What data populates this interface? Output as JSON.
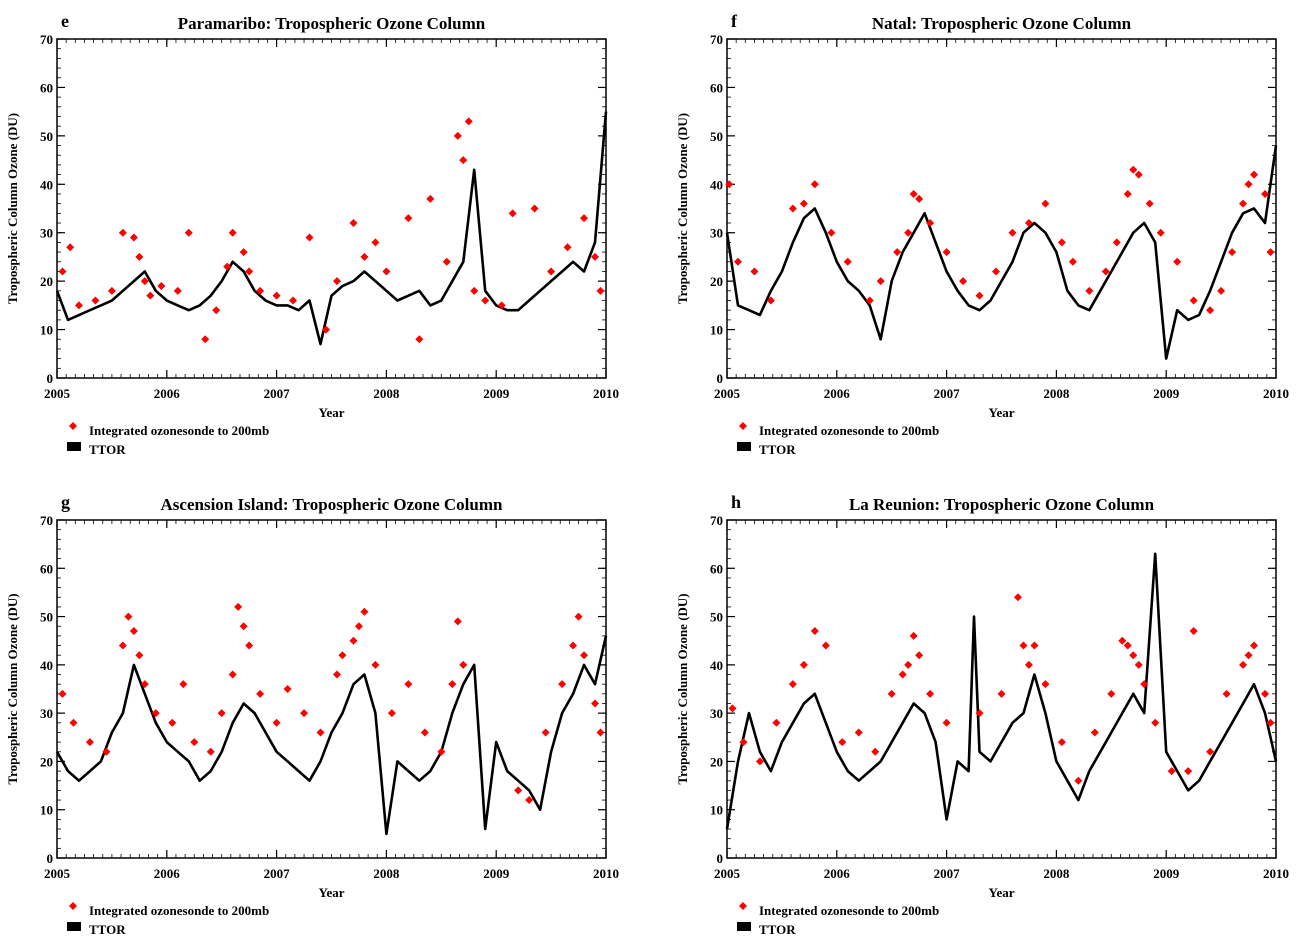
{
  "legend": {
    "sonde_label": "Integrated ozonesonde to 200mb",
    "ttor_label": "TTOR"
  },
  "colors": {
    "sonde": "#ff0000",
    "ttor": "#000000"
  },
  "chart_data": [
    {
      "type": "line",
      "panel": "e",
      "title": "Paramaribo: Tropospheric Ozone Column",
      "xlabel": "Year",
      "ylabel": "Tropospheric Column Ozone (DU)",
      "xlim": [
        2005,
        2010
      ],
      "ylim": [
        0,
        70
      ],
      "xticks": [
        "2005",
        "2006",
        "2007",
        "2008",
        "2009",
        "2010"
      ],
      "yticks": [
        "0",
        "10",
        "20",
        "30",
        "40",
        "50",
        "60",
        "70"
      ],
      "legend_position": "below-left",
      "series": [
        {
          "name": "TTOR",
          "kind": "line",
          "x": [
            2005.0,
            2005.1,
            2005.2,
            2005.3,
            2005.4,
            2005.5,
            2005.6,
            2005.7,
            2005.8,
            2005.9,
            2006.0,
            2006.1,
            2006.2,
            2006.3,
            2006.4,
            2006.5,
            2006.6,
            2006.7,
            2006.8,
            2006.9,
            2007.0,
            2007.1,
            2007.2,
            2007.3,
            2007.4,
            2007.5,
            2007.6,
            2007.7,
            2007.8,
            2007.9,
            2008.0,
            2008.1,
            2008.2,
            2008.3,
            2008.4,
            2008.5,
            2008.6,
            2008.7,
            2008.8,
            2008.9,
            2009.0,
            2009.1,
            2009.2,
            2009.3,
            2009.4,
            2009.5,
            2009.6,
            2009.7,
            2009.8,
            2009.9,
            2010.0
          ],
          "y": [
            18,
            12,
            13,
            14,
            15,
            16,
            18,
            20,
            22,
            18,
            16,
            15,
            14,
            15,
            17,
            20,
            24,
            22,
            18,
            16,
            15,
            15,
            14,
            16,
            7,
            17,
            19,
            20,
            22,
            20,
            18,
            16,
            17,
            18,
            15,
            16,
            20,
            24,
            43,
            18,
            15,
            14,
            14,
            16,
            18,
            20,
            22,
            24,
            22,
            28,
            55
          ]
        },
        {
          "name": "Integrated ozonesonde to 200mb",
          "kind": "scatter",
          "x": [
            2005.05,
            2005.12,
            2005.2,
            2005.35,
            2005.5,
            2005.6,
            2005.7,
            2005.75,
            2005.8,
            2005.85,
            2005.95,
            2006.1,
            2006.2,
            2006.35,
            2006.45,
            2006.55,
            2006.6,
            2006.7,
            2006.75,
            2006.85,
            2007.0,
            2007.15,
            2007.3,
            2007.45,
            2007.55,
            2007.7,
            2007.8,
            2007.9,
            2008.0,
            2008.2,
            2008.3,
            2008.4,
            2008.55,
            2008.65,
            2008.7,
            2008.75,
            2008.8,
            2008.9,
            2009.05,
            2009.15,
            2009.35,
            2009.5,
            2009.65,
            2009.8,
            2009.9,
            2009.95
          ],
          "y": [
            22,
            27,
            15,
            16,
            18,
            30,
            29,
            25,
            20,
            17,
            19,
            18,
            30,
            8,
            14,
            23,
            30,
            26,
            22,
            18,
            17,
            16,
            29,
            10,
            20,
            32,
            25,
            28,
            22,
            33,
            8,
            37,
            24,
            50,
            45,
            53,
            18,
            16,
            15,
            34,
            35,
            22,
            27,
            33,
            25,
            18
          ]
        }
      ]
    },
    {
      "type": "line",
      "panel": "f",
      "title": "Natal: Tropospheric Ozone Column",
      "xlabel": "Year",
      "ylabel": "Tropospheric Column Ozone (DU)",
      "xlim": [
        2005,
        2010
      ],
      "ylim": [
        0,
        70
      ],
      "xticks": [
        "2005",
        "2006",
        "2007",
        "2008",
        "2009",
        "2010"
      ],
      "yticks": [
        "0",
        "10",
        "20",
        "30",
        "40",
        "50",
        "60",
        "70"
      ],
      "legend_position": "below-left",
      "series": [
        {
          "name": "TTOR",
          "kind": "line",
          "x": [
            2005.0,
            2005.1,
            2005.2,
            2005.3,
            2005.4,
            2005.5,
            2005.6,
            2005.7,
            2005.8,
            2005.9,
            2006.0,
            2006.1,
            2006.2,
            2006.3,
            2006.4,
            2006.5,
            2006.6,
            2006.7,
            2006.8,
            2006.9,
            2007.0,
            2007.1,
            2007.2,
            2007.3,
            2007.4,
            2007.5,
            2007.6,
            2007.7,
            2007.8,
            2007.9,
            2008.0,
            2008.1,
            2008.2,
            2008.3,
            2008.4,
            2008.5,
            2008.6,
            2008.7,
            2008.8,
            2008.9,
            2009.0,
            2009.1,
            2009.2,
            2009.3,
            2009.4,
            2009.5,
            2009.6,
            2009.7,
            2009.8,
            2009.9,
            2010.0
          ],
          "y": [
            30,
            15,
            14,
            13,
            18,
            22,
            28,
            33,
            35,
            30,
            24,
            20,
            18,
            15,
            8,
            20,
            26,
            30,
            34,
            28,
            22,
            18,
            15,
            14,
            16,
            20,
            24,
            30,
            32,
            30,
            26,
            18,
            15,
            14,
            18,
            22,
            26,
            30,
            32,
            28,
            4,
            14,
            12,
            13,
            18,
            24,
            30,
            34,
            35,
            32,
            48
          ]
        },
        {
          "name": "Integrated ozonesonde to 200mb",
          "kind": "scatter",
          "x": [
            2005.02,
            2005.1,
            2005.25,
            2005.4,
            2005.6,
            2005.7,
            2005.8,
            2005.95,
            2006.1,
            2006.3,
            2006.4,
            2006.55,
            2006.65,
            2006.7,
            2006.75,
            2006.85,
            2007.0,
            2007.15,
            2007.3,
            2007.45,
            2007.6,
            2007.75,
            2007.9,
            2008.05,
            2008.15,
            2008.3,
            2008.45,
            2008.55,
            2008.65,
            2008.7,
            2008.75,
            2008.85,
            2008.95,
            2009.1,
            2009.25,
            2009.4,
            2009.5,
            2009.6,
            2009.7,
            2009.75,
            2009.8,
            2009.9,
            2009.95
          ],
          "y": [
            40,
            24,
            22,
            16,
            35,
            36,
            40,
            30,
            24,
            16,
            20,
            26,
            30,
            38,
            37,
            32,
            26,
            20,
            17,
            22,
            30,
            32,
            36,
            28,
            24,
            18,
            22,
            28,
            38,
            43,
            42,
            36,
            30,
            24,
            16,
            14,
            18,
            26,
            36,
            40,
            42,
            38,
            26
          ]
        }
      ]
    },
    {
      "type": "line",
      "panel": "g",
      "title": "Ascension Island: Tropospheric Ozone Column",
      "xlabel": "Year",
      "ylabel": "Tropospheric Column Ozone (DU)",
      "xlim": [
        2005,
        2010
      ],
      "ylim": [
        0,
        70
      ],
      "xticks": [
        "2005",
        "2006",
        "2007",
        "2008",
        "2009",
        "2010"
      ],
      "yticks": [
        "0",
        "10",
        "20",
        "30",
        "40",
        "50",
        "60",
        "70"
      ],
      "legend_position": "below-left",
      "series": [
        {
          "name": "TTOR",
          "kind": "line",
          "x": [
            2005.0,
            2005.1,
            2005.2,
            2005.3,
            2005.4,
            2005.5,
            2005.6,
            2005.7,
            2005.8,
            2005.9,
            2006.0,
            2006.1,
            2006.2,
            2006.3,
            2006.4,
            2006.5,
            2006.6,
            2006.7,
            2006.8,
            2006.9,
            2007.0,
            2007.1,
            2007.2,
            2007.3,
            2007.4,
            2007.5,
            2007.6,
            2007.7,
            2007.8,
            2007.9,
            2008.0,
            2008.1,
            2008.2,
            2008.3,
            2008.4,
            2008.5,
            2008.6,
            2008.7,
            2008.8,
            2008.9,
            2009.0,
            2009.1,
            2009.2,
            2009.3,
            2009.4,
            2009.5,
            2009.6,
            2009.7,
            2009.8,
            2009.9,
            2010.0
          ],
          "y": [
            22,
            18,
            16,
            18,
            20,
            26,
            30,
            40,
            34,
            28,
            24,
            22,
            20,
            16,
            18,
            22,
            28,
            32,
            30,
            26,
            22,
            20,
            18,
            16,
            20,
            26,
            30,
            36,
            38,
            30,
            5,
            20,
            18,
            16,
            18,
            22,
            30,
            36,
            40,
            6,
            24,
            18,
            16,
            14,
            10,
            22,
            30,
            34,
            40,
            36,
            46
          ]
        },
        {
          "name": "Integrated ozonesonde to 200mb",
          "kind": "scatter",
          "x": [
            2005.05,
            2005.15,
            2005.3,
            2005.45,
            2005.6,
            2005.65,
            2005.7,
            2005.75,
            2005.8,
            2005.9,
            2006.05,
            2006.15,
            2006.25,
            2006.4,
            2006.5,
            2006.6,
            2006.65,
            2006.7,
            2006.75,
            2006.85,
            2007.0,
            2007.1,
            2007.25,
            2007.4,
            2007.55,
            2007.6,
            2007.7,
            2007.75,
            2007.8,
            2007.9,
            2008.05,
            2008.2,
            2008.35,
            2008.5,
            2008.6,
            2008.65,
            2008.7,
            2009.2,
            2009.3,
            2009.45,
            2009.6,
            2009.7,
            2009.75,
            2009.8,
            2009.9,
            2009.95
          ],
          "y": [
            34,
            28,
            24,
            22,
            44,
            50,
            47,
            42,
            36,
            30,
            28,
            36,
            24,
            22,
            30,
            38,
            52,
            48,
            44,
            34,
            28,
            35,
            30,
            26,
            38,
            42,
            45,
            48,
            51,
            40,
            30,
            36,
            26,
            22,
            36,
            49,
            40,
            14,
            12,
            26,
            36,
            44,
            50,
            42,
            32,
            26
          ]
        }
      ]
    },
    {
      "type": "line",
      "panel": "h",
      "title": "La Reunion: Tropospheric Ozone Column",
      "xlabel": "Year",
      "ylabel": "Tropospheric Column Ozone (DU)",
      "xlim": [
        2005,
        2010
      ],
      "ylim": [
        0,
        70
      ],
      "xticks": [
        "2005",
        "2006",
        "2007",
        "2008",
        "2009",
        "2010"
      ],
      "yticks": [
        "0",
        "10",
        "20",
        "30",
        "40",
        "50",
        "60",
        "70"
      ],
      "legend_position": "below-left",
      "series": [
        {
          "name": "TTOR",
          "kind": "line",
          "x": [
            2005.0,
            2005.1,
            2005.2,
            2005.3,
            2005.4,
            2005.5,
            2005.6,
            2005.7,
            2005.8,
            2005.9,
            2006.0,
            2006.1,
            2006.2,
            2006.3,
            2006.4,
            2006.5,
            2006.6,
            2006.7,
            2006.8,
            2006.9,
            2007.0,
            2007.1,
            2007.2,
            2007.25,
            2007.3,
            2007.4,
            2007.5,
            2007.6,
            2007.7,
            2007.8,
            2007.9,
            2008.0,
            2008.1,
            2008.2,
            2008.3,
            2008.4,
            2008.5,
            2008.6,
            2008.7,
            2008.8,
            2008.9,
            2009.0,
            2009.1,
            2009.2,
            2009.3,
            2009.4,
            2009.5,
            2009.6,
            2009.7,
            2009.8,
            2009.9,
            2010.0
          ],
          "y": [
            6,
            20,
            30,
            22,
            18,
            24,
            28,
            32,
            34,
            28,
            22,
            18,
            16,
            18,
            20,
            24,
            28,
            32,
            30,
            24,
            8,
            20,
            18,
            50,
            22,
            20,
            24,
            28,
            30,
            38,
            30,
            20,
            16,
            12,
            18,
            22,
            26,
            30,
            34,
            30,
            63,
            22,
            18,
            14,
            16,
            20,
            24,
            28,
            32,
            36,
            30,
            20
          ]
        },
        {
          "name": "Integrated ozonesonde to 200mb",
          "kind": "scatter",
          "x": [
            2005.05,
            2005.15,
            2005.3,
            2005.45,
            2005.6,
            2005.7,
            2005.8,
            2005.9,
            2006.05,
            2006.2,
            2006.35,
            2006.5,
            2006.6,
            2006.65,
            2006.7,
            2006.75,
            2006.85,
            2007.0,
            2007.3,
            2007.5,
            2007.65,
            2007.7,
            2007.75,
            2007.8,
            2007.9,
            2008.05,
            2008.2,
            2008.35,
            2008.5,
            2008.6,
            2008.65,
            2008.7,
            2008.75,
            2008.8,
            2008.9,
            2009.05,
            2009.2,
            2009.25,
            2009.4,
            2009.55,
            2009.7,
            2009.75,
            2009.8,
            2009.9,
            2009.95
          ],
          "y": [
            31,
            24,
            20,
            28,
            36,
            40,
            47,
            44,
            24,
            26,
            22,
            34,
            38,
            40,
            46,
            42,
            34,
            28,
            30,
            34,
            54,
            44,
            40,
            44,
            36,
            24,
            16,
            26,
            34,
            45,
            44,
            42,
            40,
            36,
            28,
            18,
            18,
            47,
            22,
            34,
            40,
            42,
            44,
            34,
            28
          ]
        }
      ]
    }
  ]
}
